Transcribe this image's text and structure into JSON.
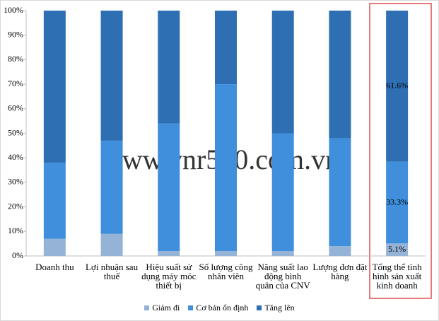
{
  "chart_data": {
    "type": "stacked_bar_100",
    "watermark": "www.vnr500.com.vn",
    "categories": [
      "Doanh thu",
      "Lợi nhuận sau thuế",
      "Hiệu suất sử dụng máy móc thiết bị",
      "Số lượng công nhân viên",
      "Năng suất lao động bình quân của CNV",
      "Lượng đơn đặt hàng",
      "Tổng thể tình hình sản xuất kinh doanh"
    ],
    "series": [
      {
        "name": "Giảm  đi",
        "color": "#95b3d7",
        "values": [
          7,
          9,
          2,
          2,
          2,
          4,
          5.1
        ],
        "value_labels": [
          null,
          null,
          null,
          null,
          null,
          null,
          "5.1%"
        ]
      },
      {
        "name": "Cơ bản ổn định",
        "color": "#3f8fdd",
        "values": [
          31,
          38,
          52,
          68,
          48,
          44,
          33.3
        ],
        "value_labels": [
          null,
          null,
          null,
          null,
          null,
          null,
          "33.3%"
        ]
      },
      {
        "name": "Tăng lên",
        "color": "#2e6eb3",
        "values": [
          62,
          53,
          46,
          30,
          50,
          52,
          61.6
        ],
        "value_labels": [
          null,
          null,
          null,
          null,
          null,
          null,
          "61.6%"
        ]
      }
    ],
    "ylim": [
      0,
      100
    ],
    "yticks": [
      {
        "value": 0,
        "label": "0%"
      },
      {
        "value": 10,
        "label": "10%"
      },
      {
        "value": 20,
        "label": "20%"
      },
      {
        "value": 30,
        "label": "30%"
      },
      {
        "value": 40,
        "label": "40%"
      },
      {
        "value": 50,
        "label": "50%"
      },
      {
        "value": 60,
        "label": "60%"
      },
      {
        "value": 70,
        "label": "70%"
      },
      {
        "value": 80,
        "label": "80%"
      },
      {
        "value": 90,
        "label": "90%"
      },
      {
        "value": 100,
        "label": "100%"
      }
    ],
    "legend": "bottom"
  }
}
